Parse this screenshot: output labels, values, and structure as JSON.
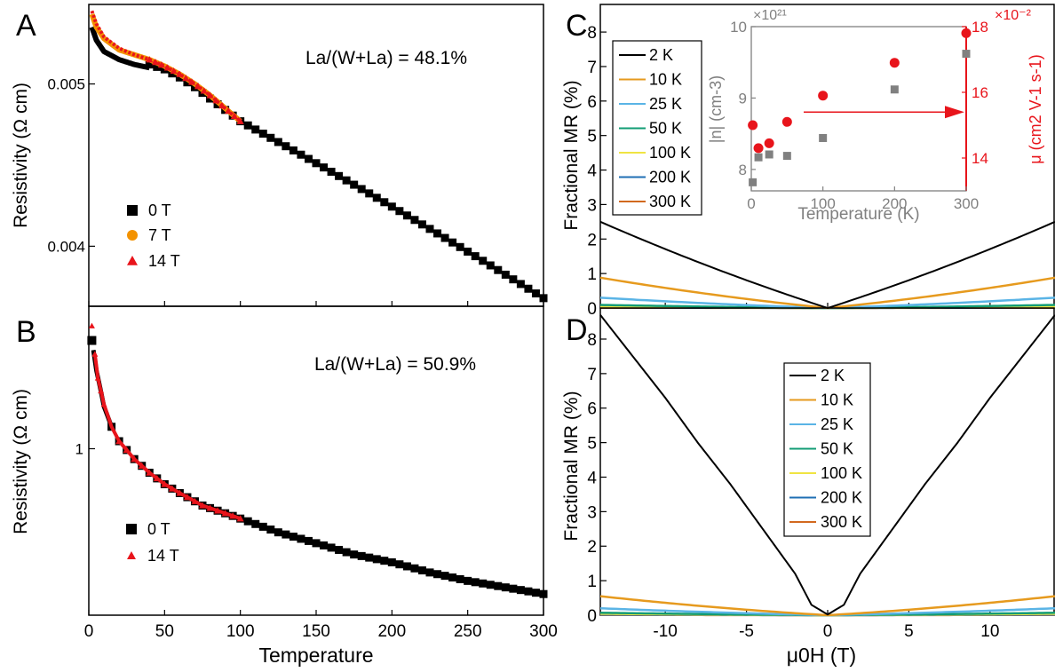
{
  "figure": {
    "panel_labels": [
      "A",
      "B",
      "C",
      "D"
    ]
  },
  "colors": {
    "black": "#000000",
    "orange": "#F39200",
    "red": "#E8141B",
    "gray": "#808080",
    "mr_2K": "#000000",
    "mr_10K": "#E69A1E",
    "mr_25K": "#5AB4E6",
    "mr_50K": "#129C74",
    "mr_100K": "#F0E442",
    "mr_200K": "#1F6FB4",
    "mr_300K": "#D2691E"
  },
  "chart_data": [
    {
      "id": "A",
      "type": "scatter",
      "annotation": "La/(W+La) = 48.1%",
      "ylabel": "Resistivity (Ω cm)",
      "xlim": [
        0,
        300
      ],
      "ylim": [
        0.00363,
        0.00549
      ],
      "yticks": [
        0.004,
        0.005
      ],
      "ytick_labels": [
        "0.004",
        "0.005"
      ],
      "legend": [
        "0 T",
        "7 T",
        "14 T"
      ],
      "series": [
        {
          "name": "0 T",
          "marker": "square",
          "color": "#000000",
          "x": [
            2,
            10,
            25,
            50,
            75,
            100,
            125,
            150,
            175,
            200,
            225,
            250,
            275,
            300
          ],
          "y": [
            0.00537,
            0.00525,
            0.00519,
            0.00511,
            0.00496,
            0.00477,
            0.00457,
            0.00438,
            0.00418,
            0.004,
            0.00385,
            0.00404,
            0.00389,
            0.00368
          ]
        },
        {
          "name": "7 T",
          "marker": "circle",
          "color": "#F39200",
          "x": [
            2,
            5,
            10,
            20,
            30,
            40,
            50,
            60,
            70,
            80,
            90,
            100
          ],
          "y": [
            0.00543,
            0.00535,
            0.00528,
            0.00521,
            0.00518,
            0.00515,
            0.00511,
            0.00506,
            0.005,
            0.00493,
            0.00485,
            0.00477
          ]
        },
        {
          "name": "14 T",
          "marker": "triangle",
          "color": "#E8141B",
          "x": [
            2,
            5,
            10,
            20,
            30,
            40,
            50,
            60,
            70,
            80,
            90,
            100
          ],
          "y": [
            0.00545,
            0.00537,
            0.00529,
            0.00522,
            0.00518,
            0.00515,
            0.00511,
            0.00506,
            0.005,
            0.00493,
            0.00485,
            0.00477
          ]
        }
      ]
    },
    {
      "id": "B",
      "type": "scatter",
      "annotation": "La/(W+La) = 50.9%",
      "ylabel": "Resistivity (Ω cm)",
      "xlabel": "Temperature",
      "xlim": [
        0,
        300
      ],
      "xticks": [
        0,
        50,
        100,
        150,
        200,
        250,
        300
      ],
      "xtick_labels": [
        "0",
        "50",
        "100",
        "150",
        "200",
        "250",
        "300"
      ],
      "y_scale": "log",
      "yticks": [
        1
      ],
      "ytick_labels": [
        "1"
      ],
      "legend": [
        "0 T",
        "14 T"
      ],
      "series": [
        {
          "name": "0 T",
          "marker": "square",
          "color": "#000000",
          "x": [
            2,
            5,
            10,
            15,
            20,
            30,
            40,
            50,
            60,
            75,
            100,
            125,
            150,
            175,
            200,
            225,
            250,
            275,
            300
          ],
          "y": [
            1.53,
            1.36,
            1.18,
            1.09,
            1.03,
            0.96,
            0.91,
            0.87,
            0.84,
            0.8,
            0.76,
            0.72,
            0.69,
            0.66,
            0.64,
            0.615,
            0.595,
            0.58,
            0.565
          ]
        },
        {
          "name": "14 T",
          "marker": "triangle",
          "color": "#E8141B",
          "x": [
            2,
            4,
            6,
            10,
            15,
            20,
            30,
            40,
            50,
            60,
            75,
            100
          ],
          "y": [
            1.62,
            1.45,
            1.32,
            1.19,
            1.09,
            1.03,
            0.96,
            0.91,
            0.87,
            0.84,
            0.8,
            0.76
          ]
        }
      ]
    },
    {
      "id": "C",
      "type": "line",
      "ylabel": "Fractional MR (%)",
      "xlim": [
        -14,
        14
      ],
      "ylim": [
        0,
        8.8
      ],
      "yticks": [
        0,
        1,
        2,
        3,
        4,
        5,
        6,
        7,
        8
      ],
      "ytick_labels": [
        "0",
        "1",
        "2",
        "3",
        "4",
        "5",
        "6",
        "7",
        "8"
      ],
      "legend": [
        "2 K",
        "10 K",
        "25 K",
        "50 K",
        "100 K",
        "200 K",
        "300 K"
      ],
      "series": [
        {
          "name": "2 K",
          "color": "#000000",
          "x": [
            -14,
            0,
            14
          ],
          "y": [
            2.5,
            0,
            2.5
          ],
          "curvature": 0.15
        },
        {
          "name": "10 K",
          "color": "#E69A1E",
          "x": [
            -14,
            0,
            14
          ],
          "y": [
            0.88,
            0,
            0.88
          ],
          "curvature": 0.25
        },
        {
          "name": "25 K",
          "color": "#5AB4E6",
          "x": [
            -14,
            0,
            14
          ],
          "y": [
            0.3,
            0,
            0.3
          ],
          "curvature": 0.3
        },
        {
          "name": "50 K",
          "color": "#129C74",
          "x": [
            -14,
            0,
            14
          ],
          "y": [
            0.09,
            0,
            0.09
          ],
          "curvature": 0.3
        },
        {
          "name": "100 K",
          "color": "#F0E442",
          "x": [
            -14,
            0,
            14
          ],
          "y": [
            0.04,
            0,
            0.04
          ],
          "curvature": 0.3
        },
        {
          "name": "200 K",
          "color": "#1F6FB4",
          "x": [
            -14,
            0,
            14
          ],
          "y": [
            0.02,
            0,
            0.02
          ],
          "curvature": 0.3
        },
        {
          "name": "300 K",
          "color": "#D2691E",
          "x": [
            -14,
            0,
            14
          ],
          "y": [
            0.01,
            0,
            0.01
          ],
          "curvature": 0.3
        }
      ]
    },
    {
      "id": "C-inset",
      "type": "scatter",
      "xlabel": "Temperature (K)",
      "ylabel_left": "|n| (cm-3)",
      "ylabel_right": "μ (cm2 V-1 s-1)",
      "xlim": [
        0,
        300
      ],
      "xticks": [
        0,
        100,
        200,
        300
      ],
      "xtick_labels": [
        "0",
        "100",
        "200",
        "300"
      ],
      "ylim_left": [
        7.7,
        10.0
      ],
      "yticks_left": [
        8,
        9,
        10
      ],
      "ytick_labels_left": [
        "8",
        "9",
        "10"
      ],
      "left_multiplier": "×10²¹",
      "ylim_right": [
        13.0,
        18.0
      ],
      "yticks_right": [
        14,
        16,
        18
      ],
      "ytick_labels_right": [
        "14",
        "16",
        "18"
      ],
      "right_multiplier": "×10⁻²",
      "series": [
        {
          "name": "|n|",
          "axis": "left",
          "marker": "square",
          "color": "#808080",
          "x": [
            2,
            10,
            25,
            50,
            100,
            200,
            300
          ],
          "y": [
            7.82,
            8.17,
            8.21,
            8.19,
            8.44,
            9.12,
            9.62
          ]
        },
        {
          "name": "μ",
          "axis": "right",
          "marker": "circle",
          "color": "#E8141B",
          "x": [
            2,
            10,
            25,
            50,
            100,
            200,
            300
          ],
          "y": [
            15.0,
            14.3,
            14.45,
            15.1,
            15.9,
            16.9,
            17.8
          ]
        }
      ],
      "arrow": {
        "from_x": 150,
        "to_x": 300,
        "y": 15.4,
        "points_to": "right axis"
      }
    },
    {
      "id": "D",
      "type": "line",
      "ylabel": "Fractional MR (%)",
      "xlabel": "μ0H (T)",
      "xlim": [
        -14,
        14
      ],
      "xticks": [
        -10,
        -5,
        0,
        5,
        10
      ],
      "xtick_labels": [
        "-10",
        "-5",
        "0",
        "5",
        "10"
      ],
      "ylim": [
        0,
        8.9
      ],
      "yticks": [
        0,
        1,
        2,
        3,
        4,
        5,
        6,
        7,
        8
      ],
      "ytick_labels": [
        "0",
        "1",
        "2",
        "3",
        "4",
        "5",
        "6",
        "7",
        "8"
      ],
      "legend": [
        "2 K",
        "10 K",
        "25 K",
        "50 K",
        "100 K",
        "200 K",
        "300 K"
      ],
      "series": [
        {
          "name": "2 K",
          "color": "#000000",
          "x": [
            -14,
            -12,
            -10,
            -8,
            -6,
            -4,
            -2,
            -1,
            0,
            1,
            2,
            4,
            6,
            8,
            10,
            12,
            14
          ],
          "y": [
            8.7,
            7.5,
            6.3,
            5.0,
            3.8,
            2.5,
            1.2,
            0.3,
            0.02,
            0.3,
            1.2,
            2.5,
            3.8,
            5.0,
            6.3,
            7.5,
            8.7
          ]
        },
        {
          "name": "10 K",
          "color": "#E69A1E",
          "x": [
            -14,
            0,
            14
          ],
          "y": [
            0.55,
            0,
            0.55
          ],
          "curvature": 0.3
        },
        {
          "name": "25 K",
          "color": "#5AB4E6",
          "x": [
            -14,
            0,
            14
          ],
          "y": [
            0.2,
            0,
            0.2
          ],
          "curvature": 0.3
        },
        {
          "name": "50 K",
          "color": "#129C74",
          "x": [
            -14,
            0,
            14
          ],
          "y": [
            0.07,
            0,
            0.07
          ],
          "curvature": 0.3
        },
        {
          "name": "100 K",
          "color": "#F0E442",
          "x": [
            -14,
            0,
            14
          ],
          "y": [
            0.04,
            0,
            0.04
          ],
          "curvature": 0.3
        },
        {
          "name": "200 K",
          "color": "#1F6FB4",
          "x": [
            -14,
            0,
            14
          ],
          "y": [
            0.02,
            0,
            0.02
          ],
          "curvature": 0.3
        },
        {
          "name": "300 K",
          "color": "#D2691E",
          "x": [
            -14,
            0,
            14
          ],
          "y": [
            0.01,
            0,
            0.01
          ],
          "curvature": 0.3
        }
      ]
    }
  ]
}
